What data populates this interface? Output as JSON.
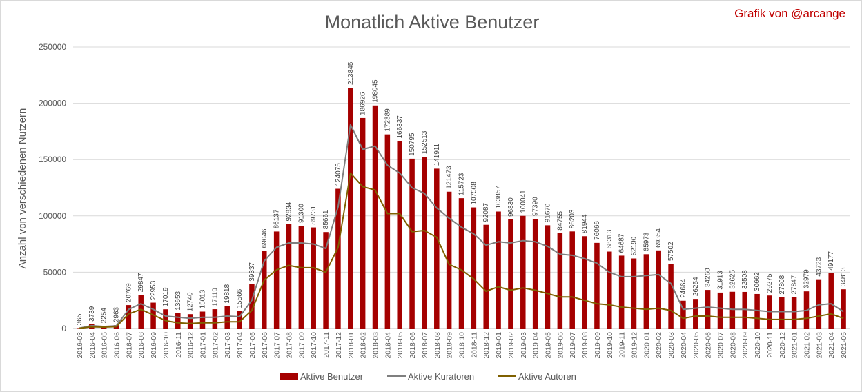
{
  "chart_data": {
    "type": "bar",
    "title": "Monatlich Aktive Benutzer",
    "credit": "Grafik von @arcange",
    "ylabel": "Anzahl von verschiedenen Nutzern",
    "xlabel": "",
    "ylim": [
      0,
      250000
    ],
    "yticks": [
      "0",
      "50000",
      "100000",
      "150000",
      "200000",
      "250000"
    ],
    "grid": true,
    "legend_position": "bottom",
    "colors": {
      "bar": "#a50000",
      "curators": "#7f7f7f",
      "authors": "#7f6000",
      "grid": "#d9d9d9"
    },
    "categories": [
      "2016-03",
      "2016-04",
      "2016-05",
      "2016-06",
      "2016-07",
      "2016-08",
      "2016-09",
      "2016-10",
      "2016-11",
      "2016-12",
      "2017-01",
      "2017-02",
      "2017-03",
      "2017-04",
      "2017-05",
      "2017-06",
      "2017-07",
      "2017-08",
      "2017-09",
      "2017-10",
      "2017-11",
      "2017-12",
      "2018-01",
      "2018-02",
      "2018-03",
      "2018-04",
      "2018-05",
      "2018-06",
      "2018-07",
      "2018-08",
      "2018-09",
      "2018-10",
      "2018-11",
      "2018-12",
      "2019-01",
      "2019-02",
      "2019-03",
      "2019-04",
      "2019-05",
      "2019-06",
      "2019-07",
      "2019-08",
      "2019-09",
      "2019-10",
      "2019-11",
      "2019-12",
      "2020-01",
      "2020-02",
      "2020-03",
      "2020-04",
      "2020-05",
      "2020-06",
      "2020-07",
      "2020-08",
      "2020-09",
      "2020-10",
      "2020-11",
      "2020-12",
      "2021-01",
      "2021-02",
      "2021-03",
      "2021-04",
      "2021-05"
    ],
    "series": [
      {
        "name": "Aktive Benutzer",
        "kind": "bar",
        "values": [
          365,
          3739,
          2254,
          2963,
          20769,
          29847,
          22953,
          17019,
          13653,
          12740,
          15013,
          17119,
          19818,
          15566,
          39337,
          69046,
          86137,
          92834,
          91300,
          89731,
          85661,
          124075,
          213845,
          186926,
          198045,
          172389,
          166337,
          150795,
          152513,
          141911,
          121473,
          115723,
          107508,
          92087,
          103857,
          96830,
          100041,
          97390,
          91670,
          84755,
          86203,
          81944,
          76066,
          68313,
          64687,
          62190,
          65973,
          69354,
          57502,
          24664,
          26254,
          34260,
          31913,
          32625,
          32508,
          30662,
          29275,
          27808,
          27847,
          32979,
          43723,
          49177,
          34813
        ]
      },
      {
        "name": "Aktive Kuratoren",
        "kind": "line",
        "values": [
          300,
          2500,
          1800,
          2400,
          17000,
          22000,
          17000,
          11000,
          10000,
          9000,
          10000,
          10000,
          11000,
          10500,
          25000,
          60000,
          72000,
          76000,
          76000,
          75000,
          71000,
          108000,
          181000,
          159000,
          162000,
          145000,
          138000,
          125000,
          120000,
          107000,
          98000,
          90000,
          84000,
          74000,
          77000,
          76000,
          78000,
          77000,
          73000,
          66000,
          65000,
          62000,
          58000,
          50000,
          46000,
          46000,
          47000,
          48000,
          40000,
          17000,
          18000,
          19000,
          18000,
          17000,
          17000,
          16000,
          15000,
          15000,
          15000,
          16000,
          21000,
          22000,
          15000
        ]
      },
      {
        "name": "Aktive Autoren",
        "kind": "line",
        "values": [
          200,
          1500,
          1200,
          1600,
          13000,
          17000,
          12000,
          7000,
          5000,
          4500,
          5000,
          5000,
          6000,
          6000,
          16000,
          43000,
          52000,
          56000,
          54000,
          54000,
          50000,
          72000,
          138000,
          126000,
          123000,
          102000,
          102000,
          86000,
          87000,
          81000,
          57000,
          52000,
          44000,
          33000,
          37000,
          34000,
          36000,
          34000,
          31000,
          28000,
          28000,
          25000,
          22000,
          21000,
          19000,
          18000,
          17000,
          18000,
          16000,
          9000,
          11000,
          11000,
          10000,
          10000,
          10000,
          9000,
          8000,
          8000,
          8000,
          9000,
          11000,
          13000,
          9000
        ]
      }
    ]
  }
}
